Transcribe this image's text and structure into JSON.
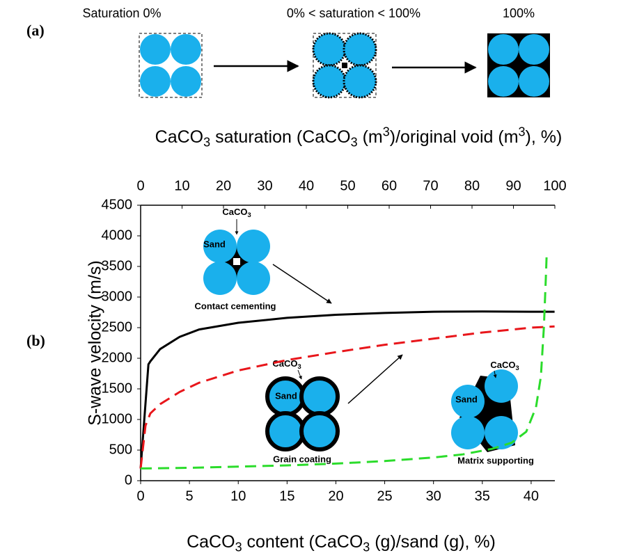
{
  "panel_a": {
    "label": "(a)",
    "stages": [
      "Saturation  0%",
      "0% < saturation < 100%",
      "100%"
    ]
  },
  "chart_data": {
    "type": "line",
    "panel_label": "(b)",
    "xlabel": "CaCO3 content (CaCO3 (g)/sand (g), %)",
    "x2label": "CaCO3 saturation (CaCO3 (m3)/original void (m3), %)",
    "ylabel": "S-wave velocity (m/s)",
    "xlim": [
      0,
      42.43
    ],
    "xticks": [
      0,
      5,
      10,
      15,
      20,
      25,
      30,
      35,
      40
    ],
    "x2lim": [
      0,
      100
    ],
    "x2ticks": [
      0,
      10,
      20,
      30,
      40,
      50,
      60,
      70,
      80,
      90,
      100
    ],
    "ylim": [
      0,
      4500
    ],
    "yticks": [
      0,
      500,
      1000,
      1500,
      2000,
      2500,
      3000,
      3500,
      4000,
      4500
    ],
    "annotations": {
      "cement": "CaCO3",
      "sand": "Sand"
    },
    "series": [
      {
        "name": "Contact cementing",
        "color": "#000000",
        "dash": "solid",
        "x": [
          0,
          0.8,
          1,
          2,
          4,
          6,
          10,
          15,
          20,
          25,
          30,
          35,
          40,
          42.4
        ],
        "values": [
          200,
          1900,
          1950,
          2150,
          2350,
          2470,
          2580,
          2660,
          2710,
          2740,
          2760,
          2765,
          2760,
          2760
        ]
      },
      {
        "name": "Grain coating",
        "color": "#e8161b",
        "dash": "dashed",
        "x": [
          0,
          0.5,
          1,
          2,
          4,
          6,
          10,
          15,
          20,
          25,
          30,
          35,
          40,
          42.4
        ],
        "values": [
          200,
          900,
          1100,
          1250,
          1450,
          1600,
          1800,
          1970,
          2100,
          2220,
          2320,
          2420,
          2500,
          2520
        ]
      },
      {
        "name": "Matrix supporting",
        "color": "#2bdc2b",
        "dash": "dashed",
        "x": [
          0,
          5,
          10,
          15,
          20,
          25,
          30,
          33,
          36,
          38,
          39.5,
          40.5,
          41,
          41.3,
          41.5,
          41.6
        ],
        "values": [
          200,
          210,
          230,
          250,
          280,
          320,
          380,
          430,
          520,
          620,
          800,
          1200,
          1700,
          2500,
          3300,
          3750
        ]
      }
    ]
  }
}
